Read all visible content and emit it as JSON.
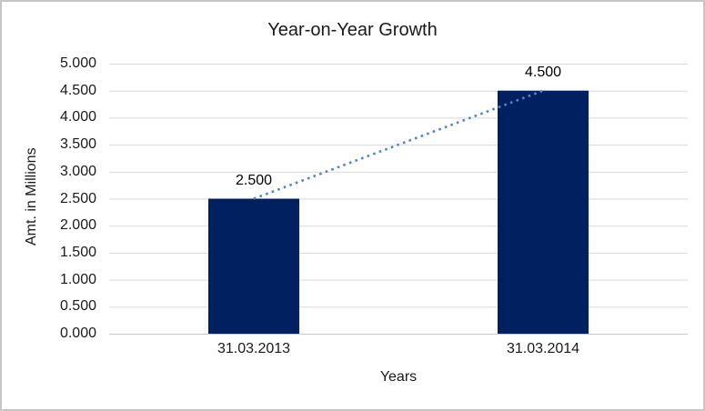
{
  "chart_data": {
    "type": "bar",
    "title": "Year-on-Year Growth",
    "xlabel": "Years",
    "ylabel": "Amt. in Millions",
    "categories": [
      "31.03.2013",
      "31.03.2014"
    ],
    "values": [
      2.5,
      4.5
    ],
    "data_labels": [
      "2.500",
      "4.500"
    ],
    "y_tick_labels": [
      "0.000",
      "0.500",
      "1.000",
      "1.500",
      "2.000",
      "2.500",
      "3.000",
      "3.500",
      "4.000",
      "4.500",
      "5.000"
    ],
    "ylim": [
      0,
      5
    ],
    "y_step": 0.5,
    "grid": true,
    "legend": "none",
    "trendline": {
      "style": "dotted",
      "from": [
        0,
        2.5
      ],
      "to": [
        1,
        4.5
      ]
    },
    "colors": {
      "bar": "#002060",
      "trendline": "#4e86c8",
      "gridline": "#d9d9d9",
      "axis_line": "#c8c8c8",
      "frame_border": "#c6c6c6",
      "text": "#1a1a1a",
      "background": "#ffffff"
    }
  }
}
